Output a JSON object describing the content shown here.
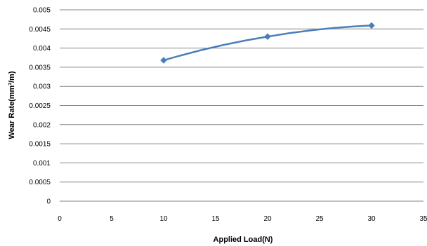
{
  "chart_data": {
    "type": "line",
    "xlabel": "Applied  Load(N)",
    "ylabel": "Wear  Rate(mm³/m)",
    "xlim": [
      0,
      35
    ],
    "ylim": [
      0,
      0.005
    ],
    "x_ticks": [
      "0",
      "5",
      "10",
      "15",
      "20",
      "25",
      "30",
      "35"
    ],
    "y_ticks": [
      "0",
      "0.0005",
      "0.001",
      "0.0015",
      "0.002",
      "0.0025",
      "0.003",
      "0.0035",
      "0.004",
      "0.0045",
      "0.005"
    ],
    "grid": "horizontal",
    "legend": "none",
    "series": [
      {
        "x": [
          10,
          20,
          30
        ],
        "y": [
          0.00368,
          0.0043,
          0.00459
        ]
      }
    ],
    "colors": {
      "series": "#4a7ebb",
      "grid": "#868686",
      "axis": "#868686"
    }
  }
}
